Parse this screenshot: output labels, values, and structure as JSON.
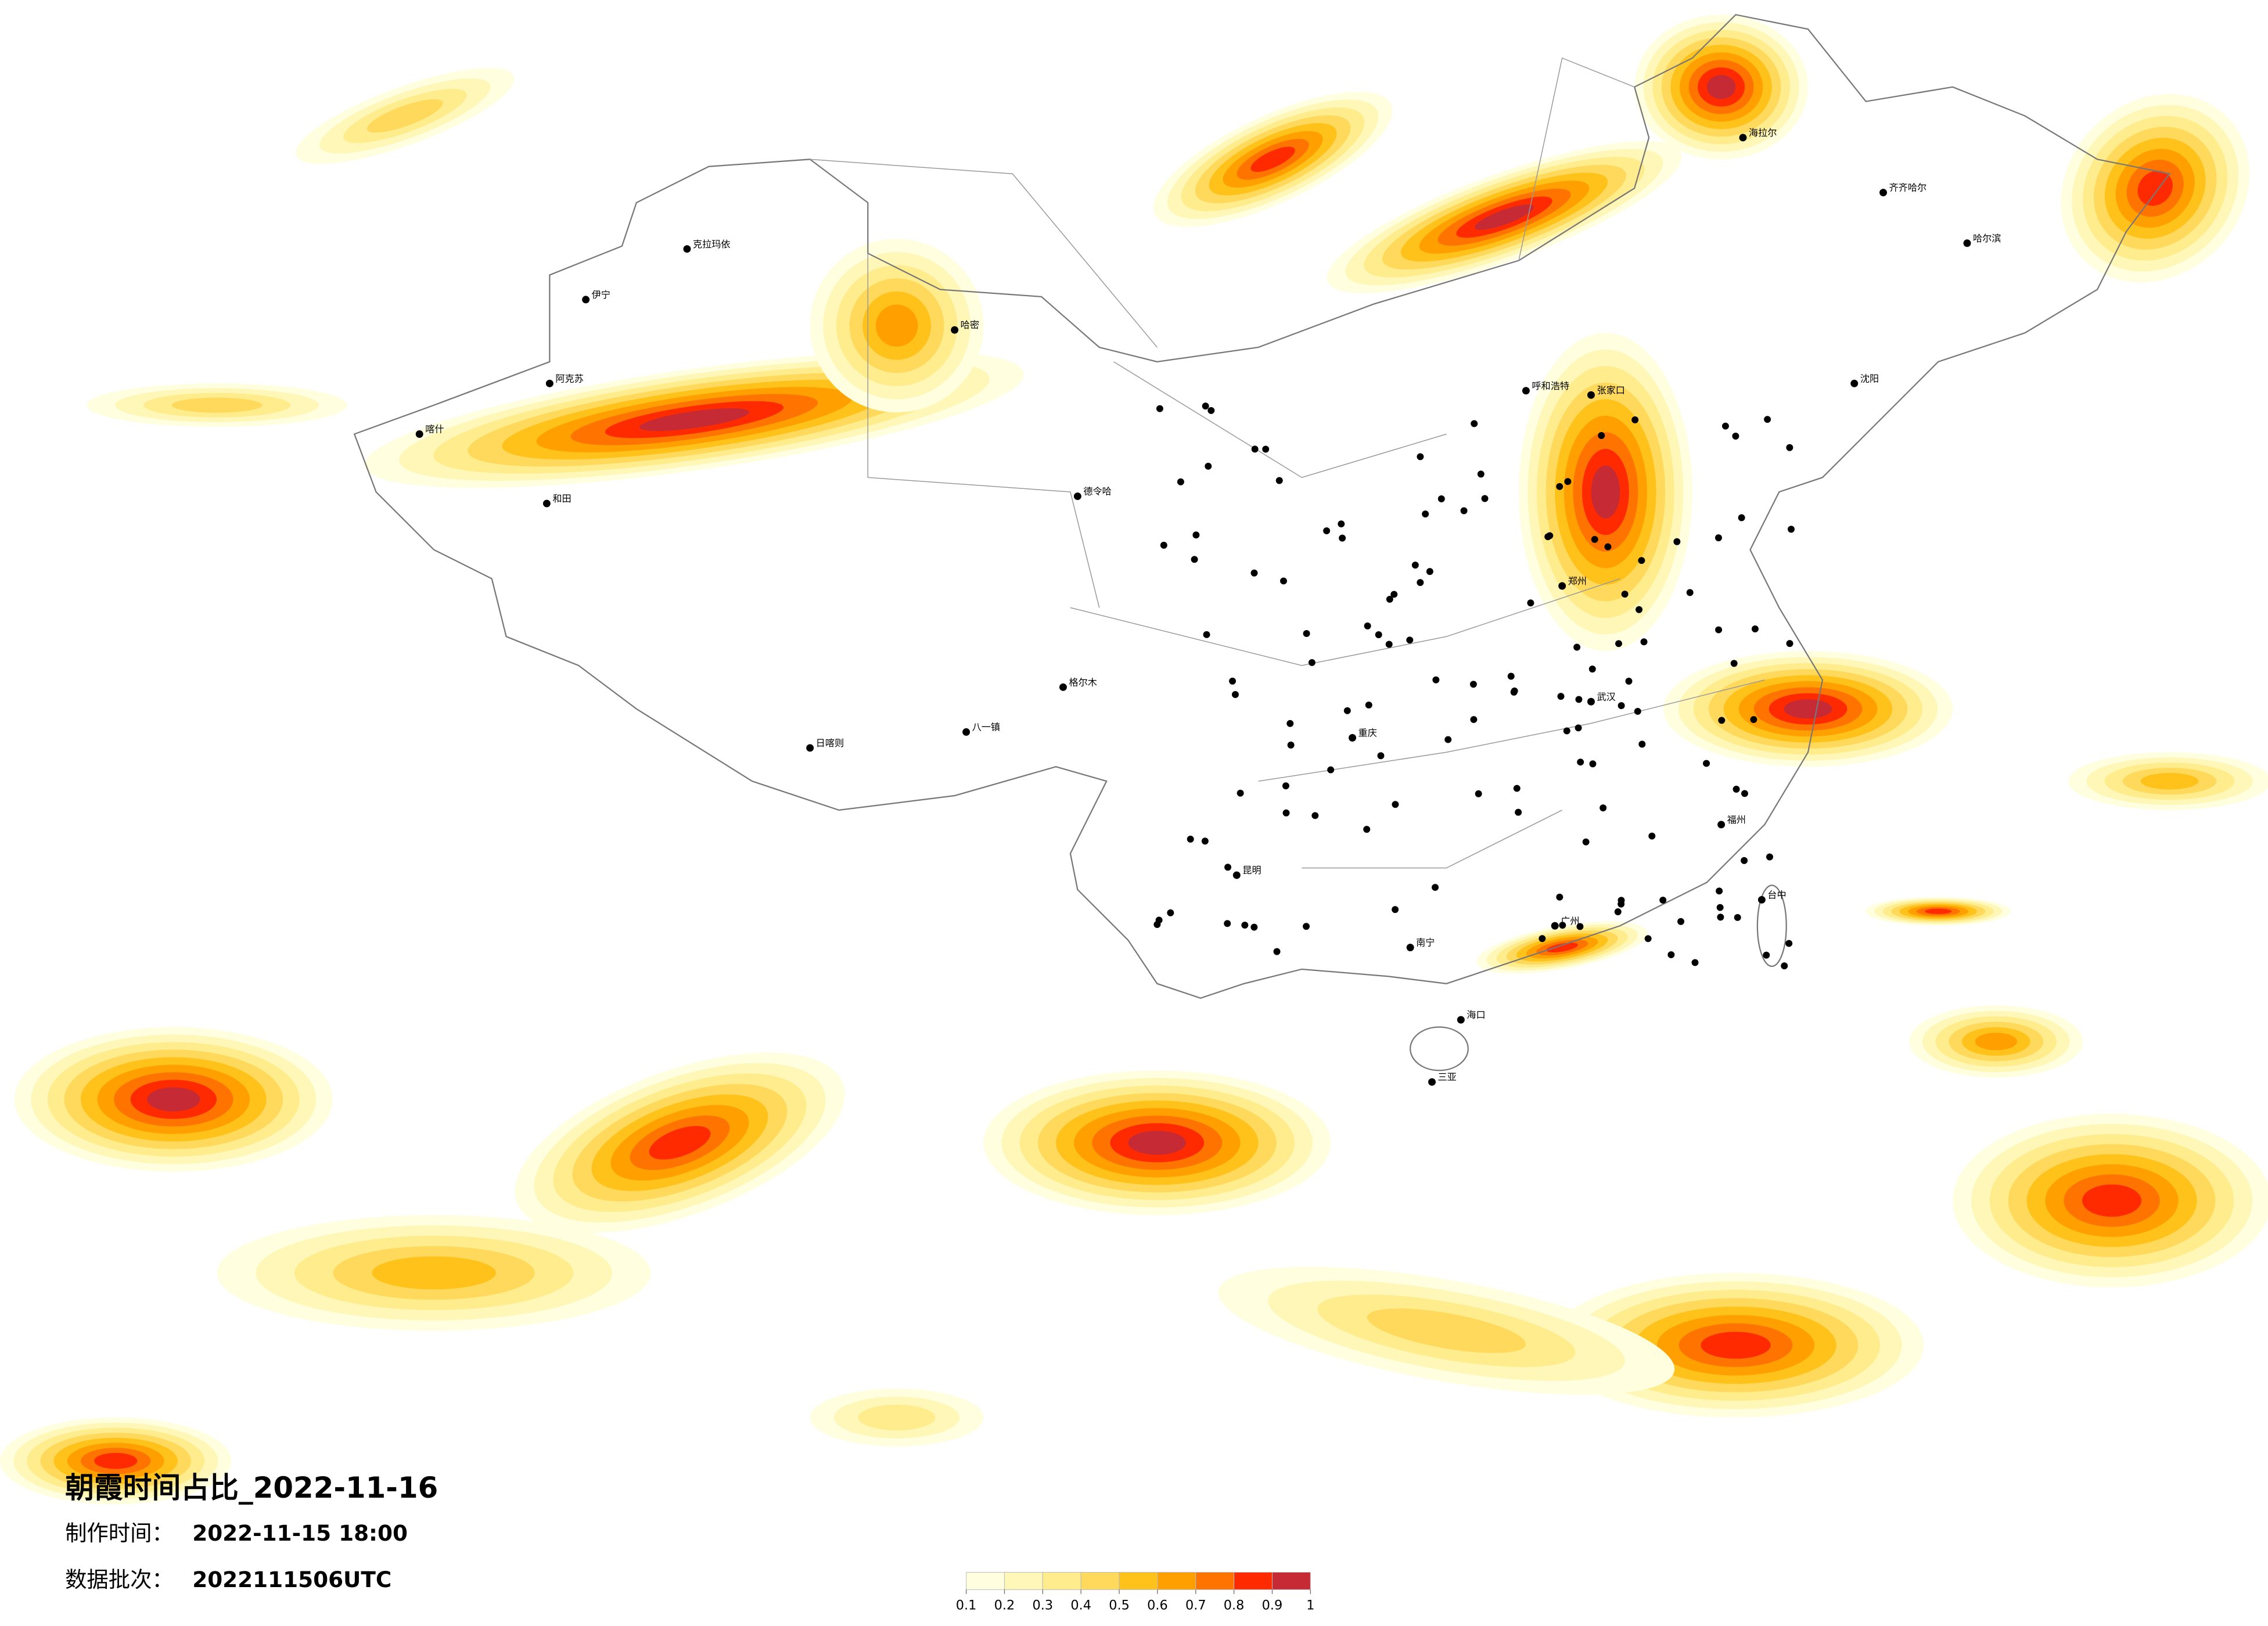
{
  "title": "朝霞时间占比_2022-11-16",
  "made_label": "制作时间：",
  "made_time": "2022-11-15 18:00",
  "batch_label": "数据批次：",
  "batch": "2022111506UTC",
  "colorbar": {
    "clim": [
      0.1,
      1
    ],
    "ticks": [
      0.1,
      0.2,
      0.3,
      0.4,
      0.5,
      0.6,
      0.7,
      0.8,
      0.9,
      1
    ],
    "colors": [
      "#ffffe0",
      "#fff7b8",
      "#ffec8c",
      "#ffd95c",
      "#ffc21a",
      "#ffa000",
      "#ff7400",
      "#ff2a00",
      "#c62a35"
    ]
  },
  "cities": [
    "克拉玛依",
    "伊宁",
    "阿克苏",
    "喀什",
    "和田",
    "哈密",
    "德令哈",
    "格尔木",
    "日喀则",
    "八一镇",
    "海拉尔",
    "齐齐哈尔",
    "哈尔滨",
    "沈阳",
    "呼和浩特",
    "张家口",
    "郑州",
    "武汉",
    "重庆",
    "昆明",
    "南宁",
    "广州",
    "福州",
    "台中",
    "海口",
    "三亚"
  ]
}
